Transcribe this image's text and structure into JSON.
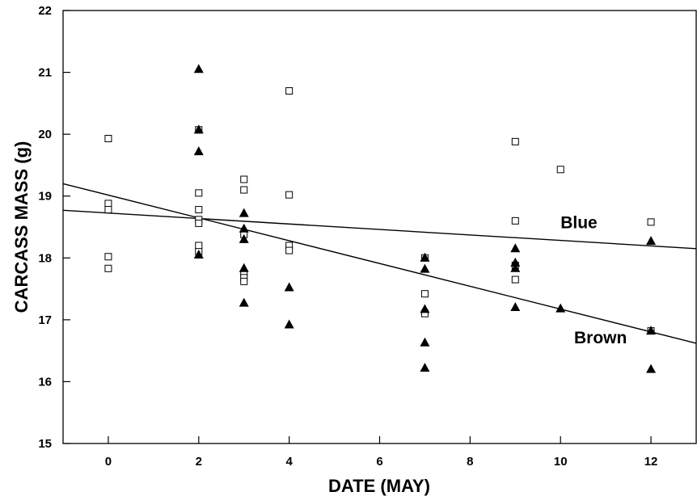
{
  "chart_data": {
    "type": "scatter",
    "xlabel": "DATE (MAY)",
    "ylabel": "CARCASS MASS (g)",
    "xlim": [
      -1,
      13
    ],
    "ylim": [
      15,
      22
    ],
    "x_ticks": [
      0,
      2,
      4,
      6,
      8,
      10,
      12
    ],
    "x_tick_labels": [
      "0",
      "2",
      "4",
      "6",
      "8",
      "10",
      "12"
    ],
    "y_ticks": [
      15,
      16,
      17,
      18,
      19,
      20,
      21,
      22
    ],
    "y_tick_labels": [
      "15",
      "16",
      "17",
      "18",
      "19",
      "20",
      "21",
      "22"
    ],
    "grid": false,
    "series": [
      {
        "name": "Blue",
        "marker": "open-square",
        "x": [
          0,
          0,
          0,
          0,
          0,
          2,
          2,
          2,
          2,
          2,
          2,
          2,
          3,
          3,
          3,
          3,
          3,
          3,
          4,
          4,
          4,
          4,
          7,
          7,
          7,
          9,
          9,
          9,
          9,
          10,
          12,
          12
        ],
        "y": [
          19.93,
          18.88,
          18.78,
          18.02,
          17.83,
          20.07,
          19.05,
          18.78,
          18.62,
          18.56,
          18.2,
          18.1,
          19.27,
          19.1,
          18.38,
          17.75,
          17.68,
          17.62,
          20.7,
          19.02,
          18.2,
          18.12,
          18.0,
          17.42,
          17.1,
          19.88,
          18.6,
          17.88,
          17.65,
          19.43,
          18.58,
          16.82
        ]
      },
      {
        "name": "Brown",
        "marker": "filled-triangle",
        "x": [
          2,
          2,
          2,
          2,
          3,
          3,
          3,
          3,
          3,
          4,
          4,
          7,
          7,
          7,
          7,
          7,
          9,
          9,
          9,
          9,
          10,
          12,
          12,
          12
        ],
        "y": [
          21.05,
          20.07,
          19.72,
          18.05,
          18.72,
          18.47,
          18.3,
          17.83,
          17.27,
          17.52,
          16.92,
          18.0,
          17.82,
          17.17,
          16.63,
          16.22,
          18.15,
          17.92,
          17.83,
          17.2,
          17.18,
          18.27,
          16.82,
          16.2
        ]
      }
    ],
    "regression_lines": [
      {
        "name": "Blue",
        "x": [
          -1,
          13
        ],
        "y": [
          18.77,
          18.15
        ]
      },
      {
        "name": "Brown",
        "x": [
          -1,
          13
        ],
        "y": [
          19.2,
          16.62
        ]
      }
    ],
    "line_labels": [
      {
        "text": "Blue",
        "x": 10,
        "y": 18.48
      },
      {
        "text": "Brown",
        "x": 10.3,
        "y": 16.62
      }
    ]
  }
}
